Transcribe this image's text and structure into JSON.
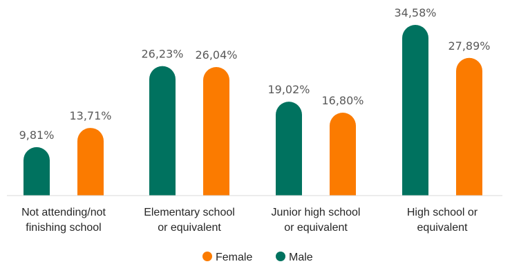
{
  "chart_data": {
    "type": "bar",
    "categories": [
      [
        "Not attending/not",
        "finishing school"
      ],
      [
        "Elementary school",
        "or equivalent"
      ],
      [
        "Junior high school",
        "or equivalent"
      ],
      [
        "High school or",
        "equivalent"
      ]
    ],
    "series": [
      {
        "name": "Male",
        "color": "#00725f",
        "values": [
          9.81,
          26.23,
          19.02,
          34.58
        ],
        "labels": [
          "9,81%",
          "26,23%",
          "19,02%",
          "34,58%"
        ]
      },
      {
        "name": "Female",
        "color": "#fb7b00",
        "values": [
          13.71,
          26.04,
          16.8,
          27.89
        ],
        "labels": [
          "13,71%",
          "26,04%",
          "16,80%",
          "27,89%"
        ]
      }
    ],
    "legend_order": [
      "Female",
      "Male"
    ],
    "legend_position": "bottom",
    "grid": false,
    "ylim": [
      0,
      36
    ]
  }
}
